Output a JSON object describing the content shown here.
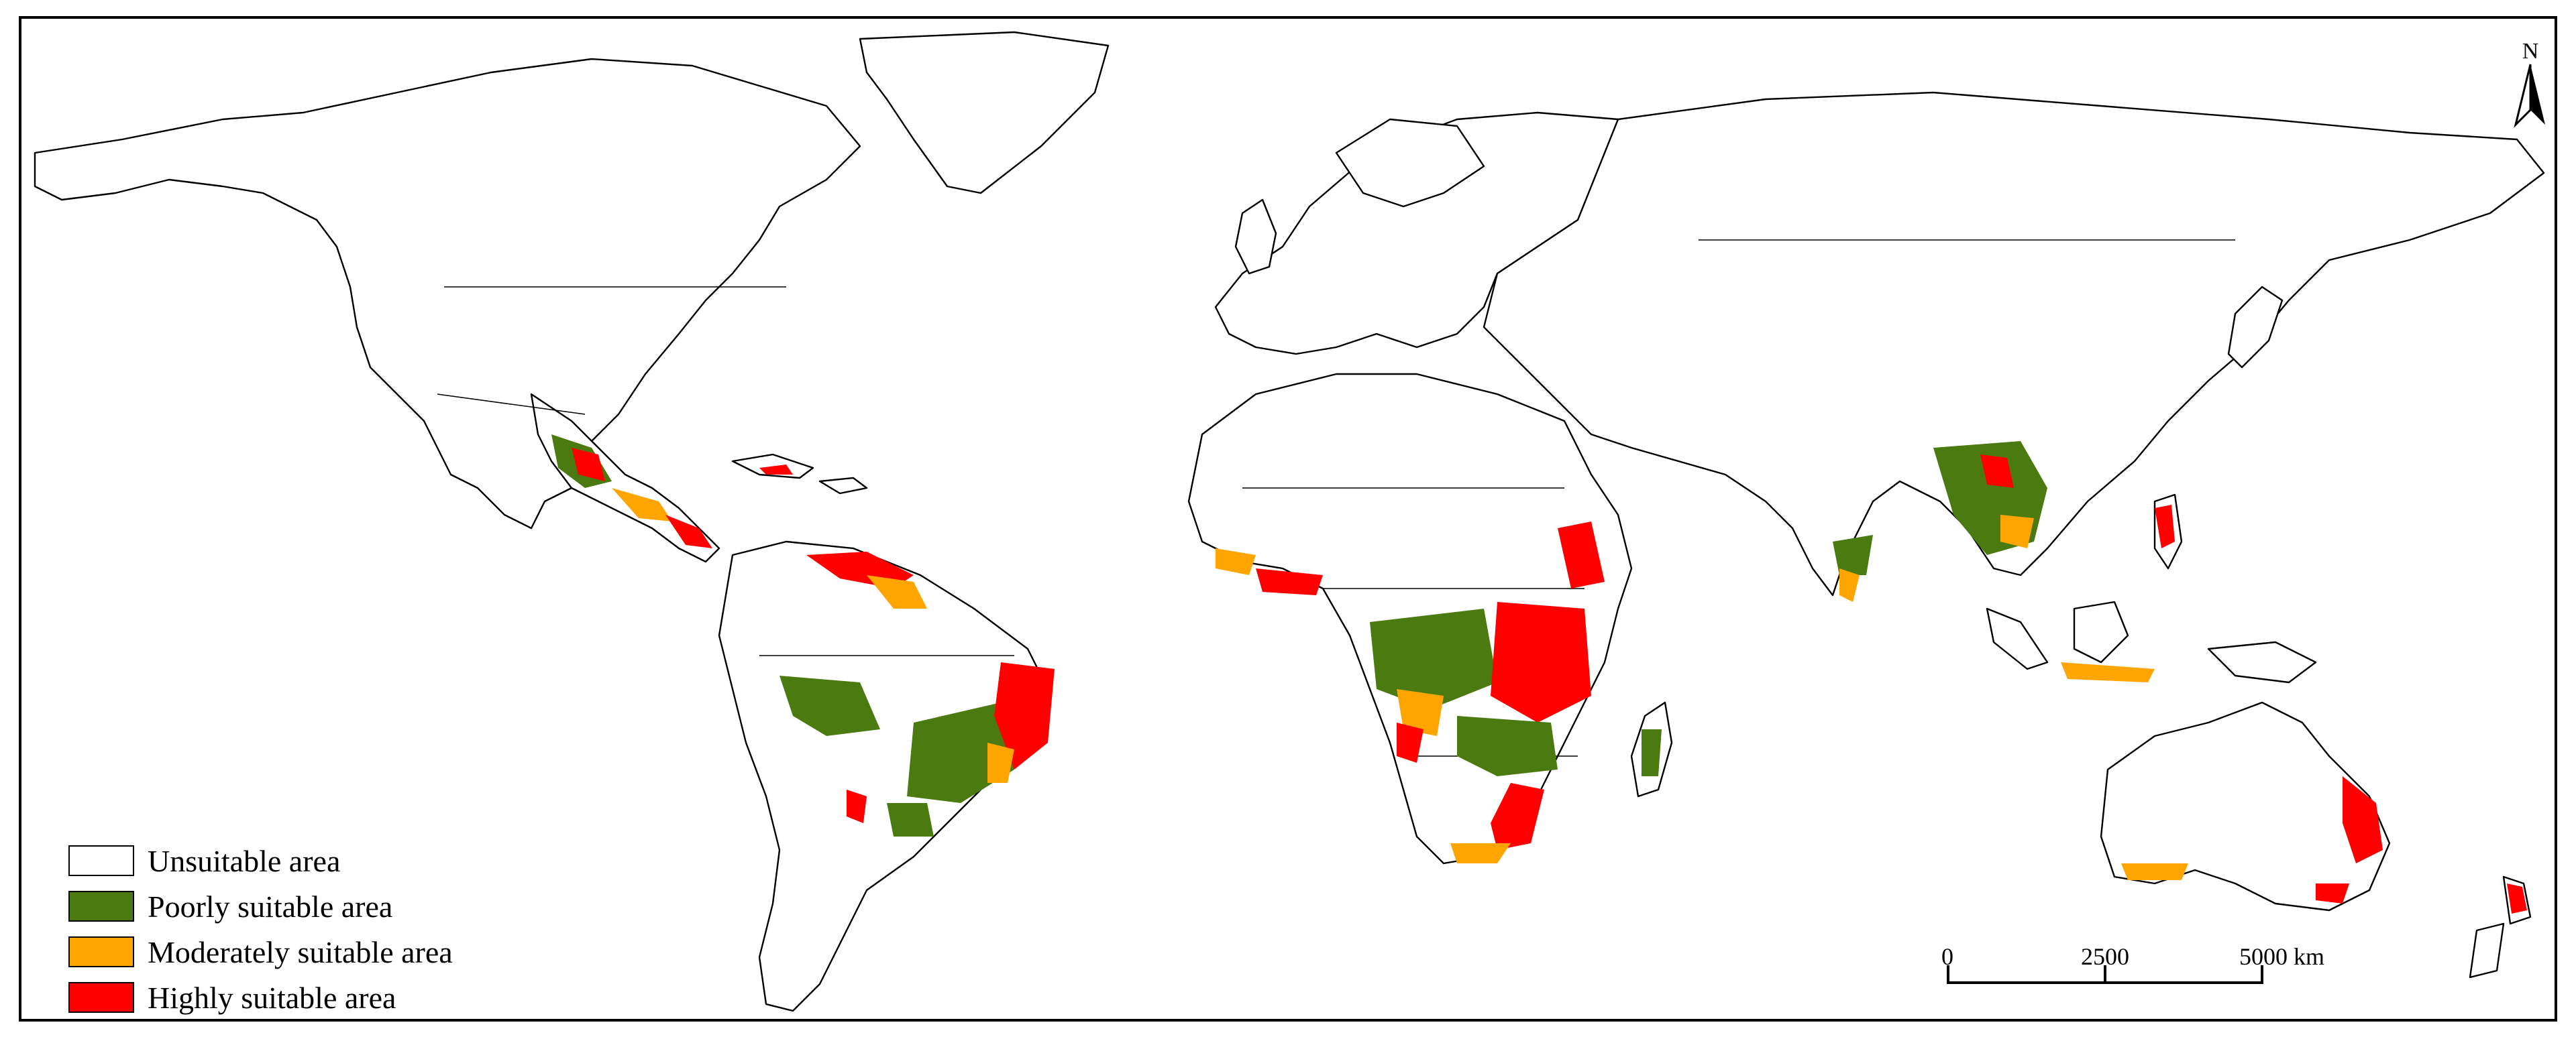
{
  "legend": {
    "items": [
      {
        "label": "Unsuitable area",
        "color": "#ffffff"
      },
      {
        "label": "Poorly suitable area",
        "color": "#4a7a10"
      },
      {
        "label": "Moderately suitable area",
        "color": "#ffa500"
      },
      {
        "label": "Highly suitable area",
        "color": "#ff0000"
      }
    ]
  },
  "scale_bar": {
    "labels": [
      "0",
      "2500",
      "5000 km"
    ]
  },
  "north_arrow": {
    "label": "N"
  },
  "colors": {
    "poor": "#4a7a10",
    "moderate": "#ffa500",
    "high": "#ff0000",
    "unsuitable": "#ffffff"
  }
}
